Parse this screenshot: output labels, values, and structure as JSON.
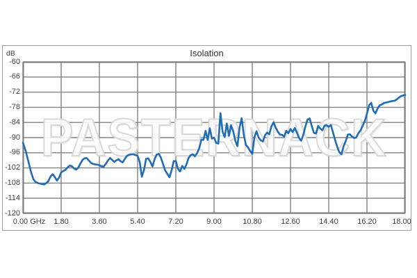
{
  "title": "Isolation",
  "y_axis": {
    "unit_label": "dB"
  },
  "watermark": "PASTERNACK",
  "colors": {
    "line": "#1e6cb5",
    "grid": "#828282",
    "frame": "#7a7a7a",
    "figure_border": "#9b9b9b",
    "title_text": "#333333",
    "axis_text": "#3f3f3f",
    "watermark_outline": "#d8d8d8"
  },
  "chart_data": {
    "type": "line",
    "title": "Isolation",
    "xlabel": "GHz",
    "ylabel": "dB",
    "xlim": [
      0,
      18
    ],
    "ylim": [
      -120,
      -60
    ],
    "x_tick_step": 1.8,
    "y_tick_step": 6,
    "grid": true,
    "legend": "none",
    "x_tick_labels": [
      "0.00 GHz",
      "1.80",
      "3.60",
      "5.40",
      "7.20",
      "9.00",
      "10.80",
      "12.60",
      "14.40",
      "16.20",
      "18.00"
    ],
    "x_tick_values": [
      0,
      1.8,
      3.6,
      5.4,
      7.2,
      9.0,
      10.8,
      12.6,
      14.4,
      16.2,
      18.0
    ],
    "y_tick_labels": [
      "-60",
      "-66",
      "-72",
      "-78",
      "-84",
      "-90",
      "-96",
      "-102",
      "-108",
      "-114",
      "-120"
    ],
    "y_tick_values": [
      -60,
      -66,
      -72,
      -78,
      -84,
      -90,
      -96,
      -102,
      -108,
      -114,
      -120
    ],
    "series": [
      {
        "name": "Isolation",
        "color": "#1e6cb5",
        "points": [
          [
            0,
            -92
          ],
          [
            0.1,
            -94.5
          ],
          [
            0.2,
            -97.5
          ],
          [
            0.3,
            -101
          ],
          [
            0.4,
            -104.2
          ],
          [
            0.5,
            -106.6
          ],
          [
            0.6,
            -107.6
          ],
          [
            0.7,
            -108
          ],
          [
            0.8,
            -108.2
          ],
          [
            0.9,
            -108.4
          ],
          [
            1,
            -108.5
          ],
          [
            1.1,
            -108
          ],
          [
            1.2,
            -107.2
          ],
          [
            1.3,
            -105.4
          ],
          [
            1.4,
            -104.5
          ],
          [
            1.5,
            -105.6
          ],
          [
            1.6,
            -107
          ],
          [
            1.7,
            -105.9
          ],
          [
            1.8,
            -103.8
          ],
          [
            1.9,
            -103.2
          ],
          [
            2,
            -102.8
          ],
          [
            2.1,
            -101.8
          ],
          [
            2.2,
            -101.1
          ],
          [
            2.3,
            -101.3
          ],
          [
            2.4,
            -102.1
          ],
          [
            2.5,
            -102.7
          ],
          [
            2.6,
            -102
          ],
          [
            2.7,
            -100.4
          ],
          [
            2.8,
            -98.9
          ],
          [
            2.9,
            -98.2
          ],
          [
            3,
            -98.1
          ],
          [
            3.1,
            -99
          ],
          [
            3.2,
            -100
          ],
          [
            3.3,
            -100.4
          ],
          [
            3.4,
            -100.6
          ],
          [
            3.5,
            -100.7
          ],
          [
            3.6,
            -100.9
          ],
          [
            3.7,
            -101.4
          ],
          [
            3.8,
            -101.5
          ],
          [
            3.9,
            -100.4
          ],
          [
            4,
            -99.1
          ],
          [
            4.1,
            -98.1
          ],
          [
            4.2,
            -98.8
          ],
          [
            4.3,
            -99.6
          ],
          [
            4.4,
            -99
          ],
          [
            4.5,
            -98.6
          ],
          [
            4.6,
            -99.4
          ],
          [
            4.7,
            -99.8
          ],
          [
            4.8,
            -98.4
          ],
          [
            4.9,
            -97.2
          ],
          [
            5,
            -96.8
          ],
          [
            5.1,
            -96.6
          ],
          [
            5.2,
            -96.6
          ],
          [
            5.3,
            -96.9
          ],
          [
            5.4,
            -97.2
          ],
          [
            5.5,
            -99.8
          ],
          [
            5.6,
            -105.5
          ],
          [
            5.7,
            -102.8
          ],
          [
            5.8,
            -98.4
          ],
          [
            5.9,
            -98.2
          ],
          [
            6,
            -99.6
          ],
          [
            6.1,
            -101.4
          ],
          [
            6.2,
            -98.6
          ],
          [
            6.3,
            -96.7
          ],
          [
            6.4,
            -96.4
          ],
          [
            6.5,
            -98
          ],
          [
            6.6,
            -100.6
          ],
          [
            6.7,
            -103
          ],
          [
            6.8,
            -104.4
          ],
          [
            6.9,
            -105.7
          ],
          [
            7,
            -103
          ],
          [
            7.1,
            -99.3
          ],
          [
            7.2,
            -99.3
          ],
          [
            7.3,
            -102.4
          ],
          [
            7.4,
            -103.4
          ],
          [
            7.5,
            -101.2
          ],
          [
            7.6,
            -102.4
          ],
          [
            7.7,
            -100.6
          ],
          [
            7.8,
            -98.1
          ],
          [
            7.9,
            -96.9
          ],
          [
            8,
            -96.6
          ],
          [
            8.1,
            -97.4
          ],
          [
            8.2,
            -96.1
          ],
          [
            8.3,
            -94.3
          ],
          [
            8.4,
            -90.8
          ],
          [
            8.5,
            -90.9
          ],
          [
            8.6,
            -87.3
          ],
          [
            8.7,
            -90.9
          ],
          [
            8.8,
            -86.3
          ],
          [
            8.9,
            -90.4
          ],
          [
            9,
            -90
          ],
          [
            9.1,
            -92.1
          ],
          [
            9.2,
            -92.4
          ],
          [
            9.3,
            -80.3
          ],
          [
            9.4,
            -87.6
          ],
          [
            9.5,
            -89.8
          ],
          [
            9.6,
            -84.4
          ],
          [
            9.7,
            -89.3
          ],
          [
            9.8,
            -85.1
          ],
          [
            9.9,
            -87.4
          ],
          [
            10,
            -91.2
          ],
          [
            10.1,
            -93.4
          ],
          [
            10.2,
            -86
          ],
          [
            10.3,
            -82.3
          ],
          [
            10.4,
            -88.9
          ],
          [
            10.5,
            -92.9
          ],
          [
            10.6,
            -93.9
          ],
          [
            10.7,
            -95.3
          ],
          [
            10.8,
            -96.4
          ],
          [
            10.9,
            -89.9
          ],
          [
            11,
            -87.5
          ],
          [
            11.1,
            -90
          ],
          [
            11.2,
            -91.1
          ],
          [
            11.3,
            -91.5
          ],
          [
            11.4,
            -89.1
          ],
          [
            11.5,
            -88
          ],
          [
            11.6,
            -88.7
          ],
          [
            11.7,
            -85.6
          ],
          [
            11.8,
            -83.9
          ],
          [
            11.9,
            -86
          ],
          [
            12,
            -87.6
          ],
          [
            12.1,
            -88.8
          ],
          [
            12.2,
            -88.9
          ],
          [
            12.3,
            -89.6
          ],
          [
            12.4,
            -87.3
          ],
          [
            12.5,
            -88.3
          ],
          [
            12.6,
            -86.6
          ],
          [
            12.7,
            -87.8
          ],
          [
            12.8,
            -86.2
          ],
          [
            12.9,
            -88
          ],
          [
            13,
            -90.1
          ],
          [
            13.1,
            -91.2
          ],
          [
            13.2,
            -89
          ],
          [
            13.3,
            -85.6
          ],
          [
            13.4,
            -82.9
          ],
          [
            13.5,
            -82.4
          ],
          [
            13.6,
            -85.4
          ],
          [
            13.7,
            -88.1
          ],
          [
            13.8,
            -88.4
          ],
          [
            13.9,
            -85.4
          ],
          [
            14,
            -86.4
          ],
          [
            14.1,
            -87.1
          ],
          [
            14.2,
            -85.3
          ],
          [
            14.3,
            -85.1
          ],
          [
            14.4,
            -85.7
          ],
          [
            14.5,
            -85
          ],
          [
            14.6,
            -87.9
          ],
          [
            14.7,
            -91
          ],
          [
            14.8,
            -93.6
          ],
          [
            14.9,
            -95.8
          ],
          [
            15,
            -96.6
          ],
          [
            15.1,
            -93.4
          ],
          [
            15.2,
            -91.4
          ],
          [
            15.3,
            -88.8
          ],
          [
            15.4,
            -88.7
          ],
          [
            15.5,
            -89.6
          ],
          [
            15.6,
            -90.2
          ],
          [
            15.7,
            -89.9
          ],
          [
            15.8,
            -88.2
          ],
          [
            15.9,
            -87.1
          ],
          [
            16,
            -85.3
          ],
          [
            16.1,
            -83.4
          ],
          [
            16.2,
            -80.6
          ],
          [
            16.3,
            -77.2
          ],
          [
            16.4,
            -76.2
          ],
          [
            16.5,
            -79.3
          ],
          [
            16.6,
            -80.4
          ],
          [
            16.7,
            -78.5
          ],
          [
            16.8,
            -77.2
          ],
          [
            16.9,
            -76.9
          ],
          [
            17,
            -76.3
          ],
          [
            17.1,
            -76.1
          ],
          [
            17.2,
            -75.9
          ],
          [
            17.3,
            -75.7
          ],
          [
            17.4,
            -75.5
          ],
          [
            17.5,
            -75.4
          ],
          [
            17.6,
            -74.9
          ],
          [
            17.7,
            -74.2
          ],
          [
            17.8,
            -73.6
          ],
          [
            17.9,
            -73.3
          ],
          [
            18,
            -73.1
          ]
        ]
      }
    ]
  }
}
